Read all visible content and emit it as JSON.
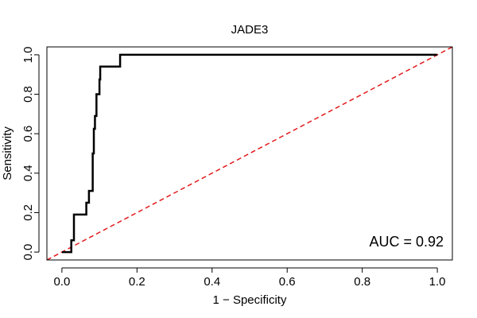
{
  "chart_data": {
    "type": "line",
    "title": "JADE3",
    "xlabel": "1 − Specificity",
    "ylabel": "Sensitivity",
    "xlim": [
      -0.04,
      1.04
    ],
    "ylim": [
      -0.04,
      1.04
    ],
    "x_ticks": [
      0.0,
      0.2,
      0.4,
      0.6,
      0.8,
      1.0
    ],
    "x_tick_labels": [
      "0.0",
      "0.2",
      "0.4",
      "0.6",
      "0.8",
      "1.0"
    ],
    "y_ticks": [
      0.0,
      0.2,
      0.4,
      0.6,
      0.8,
      1.0
    ],
    "y_tick_labels": [
      "0.0",
      "0.2",
      "0.4",
      "0.6",
      "0.8",
      "1.0"
    ],
    "grid": false,
    "annotation": "AUC = 0.92",
    "series": [
      {
        "color": "#000000",
        "style": "solid",
        "x": [
          0.0,
          0.0,
          0.025,
          0.025,
          0.032,
          0.032,
          0.065,
          0.065,
          0.072,
          0.072,
          0.082,
          0.082,
          0.085,
          0.085,
          0.088,
          0.088,
          0.092,
          0.092,
          0.1,
          0.1,
          0.102,
          0.102,
          0.155,
          0.155,
          1.0
        ],
        "y": [
          0.0,
          0.0,
          0.0,
          0.06,
          0.06,
          0.19,
          0.19,
          0.25,
          0.25,
          0.31,
          0.31,
          0.5,
          0.5,
          0.625,
          0.625,
          0.69,
          0.69,
          0.8,
          0.8,
          0.875,
          0.875,
          0.94,
          0.94,
          1.0,
          1.0
        ]
      },
      {
        "color": "#e31a1c",
        "style": "dashed",
        "x": [
          -0.04,
          1.04
        ],
        "y": [
          -0.04,
          1.04
        ]
      }
    ]
  }
}
